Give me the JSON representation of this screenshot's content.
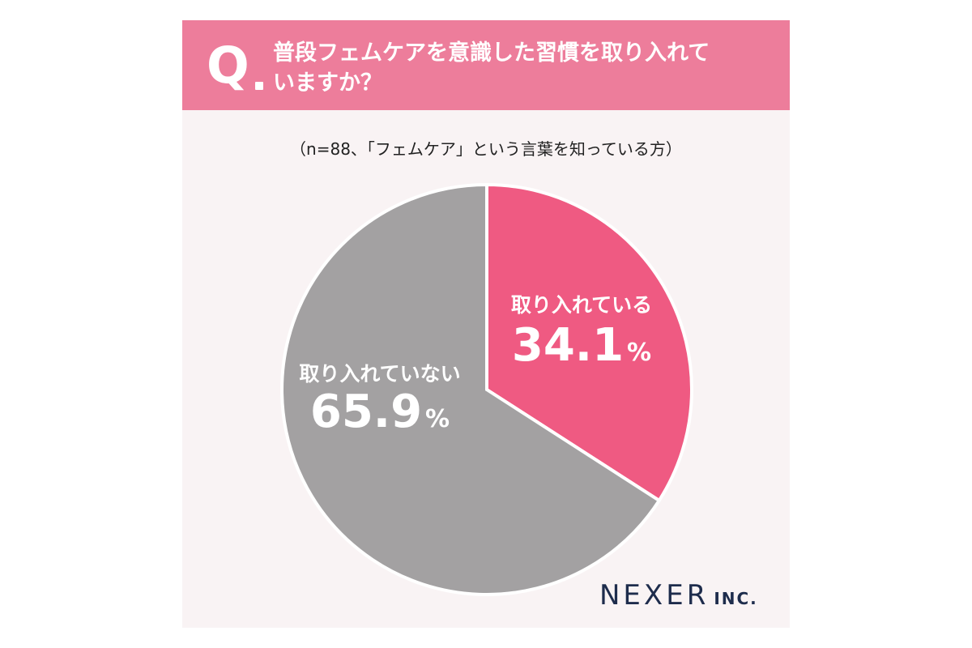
{
  "header": {
    "q_letter": "Q",
    "question_line1": "普段フェムケアを意識した習慣を取り入れて",
    "question_line2": "いますか？"
  },
  "subtitle": "（n=88、「フェムケア」という言葉を知っている方）",
  "chart_data": {
    "type": "pie",
    "title": "普段フェムケアを意識した習慣を取り入れていますか？",
    "subtitle": "（n=88、「フェムケア」という言葉を知っている方）",
    "slices": [
      {
        "label": "取り入れている",
        "value": 34.1,
        "display": "34.1",
        "unit": "%",
        "color": "#ef5a82"
      },
      {
        "label": "取り入れていない",
        "value": 65.9,
        "display": "65.9",
        "unit": "%",
        "color": "#a3a1a2"
      }
    ]
  },
  "logo": {
    "main": "NEXER",
    "sub": "INC."
  },
  "colors": {
    "header": "#ed7d9b",
    "background": "#f9f3f4",
    "logo": "#1e2c4c"
  }
}
